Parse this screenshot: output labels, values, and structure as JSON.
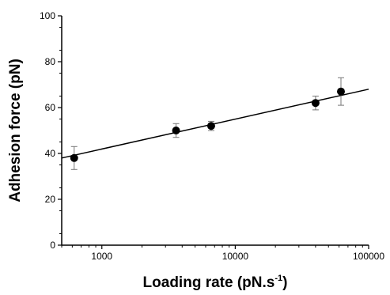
{
  "chart_data": {
    "type": "scatter",
    "x_scale": "log",
    "xlabel_main": "Loading rate (pN.s",
    "xlabel_sup": "-1",
    "xlabel_tail": ")",
    "ylabel": "Adhesion force (pN)",
    "xlim": [
      500,
      100000
    ],
    "ylim": [
      0,
      100
    ],
    "x_ticks": [
      1000,
      10000,
      100000
    ],
    "x_tick_labels": [
      "1000",
      "10000",
      "100000"
    ],
    "y_ticks": [
      0,
      20,
      40,
      60,
      80,
      100
    ],
    "y_tick_labels": [
      "0",
      "20",
      "40",
      "60",
      "80",
      "100"
    ],
    "grid": false,
    "series": [
      {
        "points": [
          {
            "x": 620,
            "y": 38,
            "err": 5
          },
          {
            "x": 3600,
            "y": 50,
            "err": 3
          },
          {
            "x": 6600,
            "y": 52,
            "err": 2
          },
          {
            "x": 40000,
            "y": 62,
            "err": 3
          },
          {
            "x": 62000,
            "y": 67,
            "err": 6
          }
        ]
      }
    ],
    "fit_line": {
      "x": [
        500,
        100000
      ],
      "y": [
        38,
        68
      ]
    }
  }
}
